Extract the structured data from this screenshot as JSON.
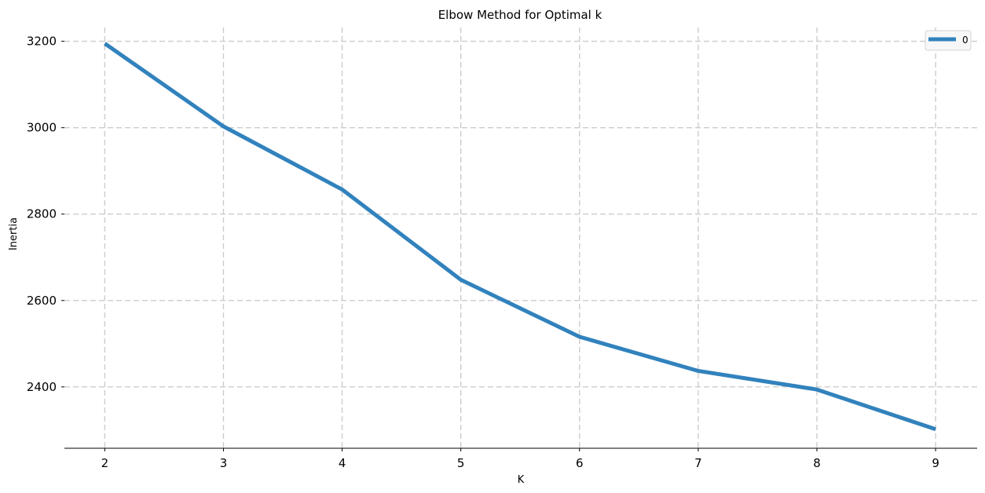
{
  "chart_data": {
    "type": "line",
    "title": "Elbow Method for Optimal k",
    "xlabel": "K",
    "ylabel": "Inertia",
    "x": [
      2,
      3,
      4,
      5,
      6,
      7,
      8,
      9
    ],
    "series": [
      {
        "name": "0",
        "color": "#3182bd",
        "values": [
          3195,
          3003,
          2857,
          2648,
          2516,
          2437,
          2394,
          2302
        ]
      }
    ],
    "xticks": [
      2,
      3,
      4,
      5,
      6,
      7,
      8,
      9
    ],
    "yticks": [
      2400,
      2600,
      2800,
      3000,
      3200
    ],
    "xlim": [
      1.66,
      9.35
    ],
    "ylim": [
      2258,
      3232
    ],
    "grid": true,
    "legend_position": "top-right"
  }
}
